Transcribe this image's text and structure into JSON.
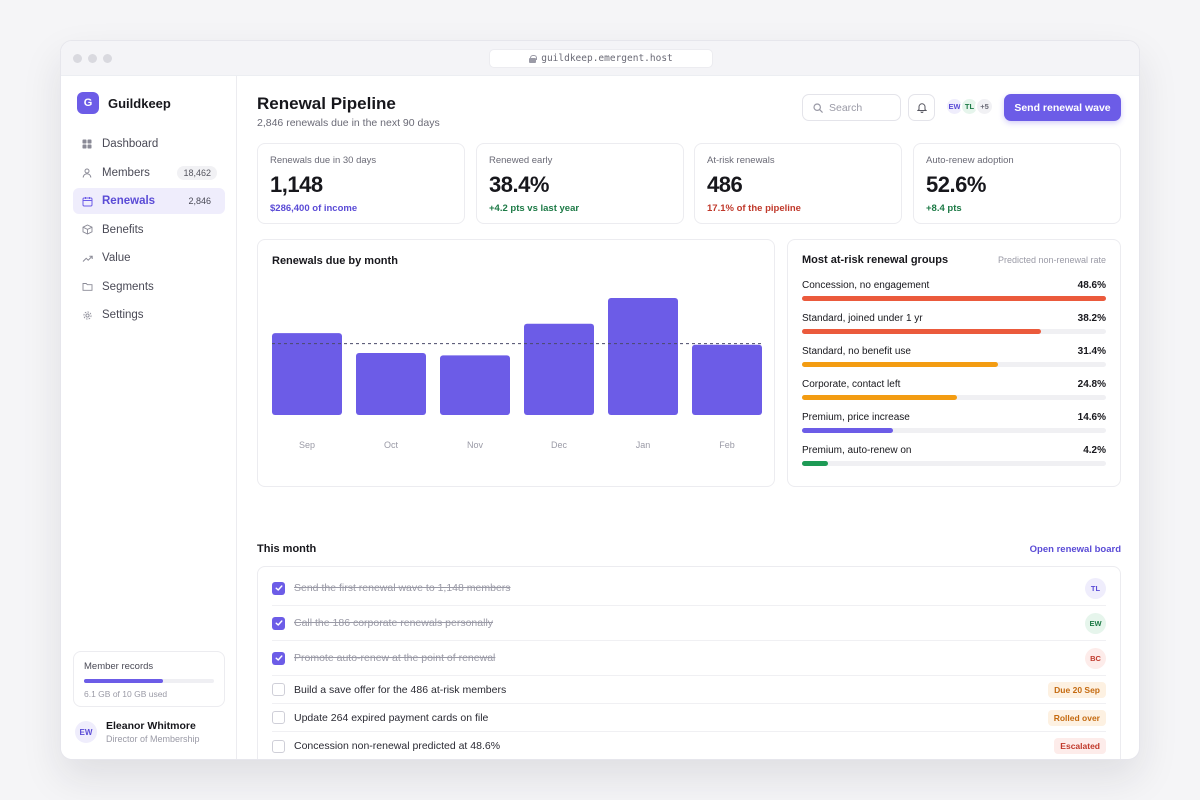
{
  "browser": {
    "url": "guildkeep.emergent.host"
  },
  "brand": {
    "logo_letter": "G",
    "name": "Guildkeep"
  },
  "sidebar": {
    "items": [
      {
        "label": "Dashboard",
        "badge": "",
        "icon": "grid-icon"
      },
      {
        "label": "Members",
        "badge": "18,462",
        "icon": "user-icon"
      },
      {
        "label": "Renewals",
        "badge": "2,846",
        "icon": "calendar-icon",
        "active": true
      },
      {
        "label": "Benefits",
        "badge": "",
        "icon": "box-icon"
      },
      {
        "label": "Value",
        "badge": "",
        "icon": "trend-icon"
      },
      {
        "label": "Segments",
        "badge": "",
        "icon": "folder-icon"
      },
      {
        "label": "Settings",
        "badge": "",
        "icon": "gear-icon"
      }
    ],
    "storage": {
      "title": "Member records",
      "used_text": "6.1 GB of 10 GB used",
      "fraction": 0.61
    },
    "user": {
      "initials": "EW",
      "name": "Eleanor Whitmore",
      "role": "Director of Membership"
    }
  },
  "header": {
    "title": "Renewal Pipeline",
    "subtitle": "2,846 renewals due in the next 90 days",
    "search_placeholder": "Search",
    "avatars": [
      "EW",
      "TL",
      "+5"
    ],
    "primary_button": "Send renewal wave"
  },
  "kpis": [
    {
      "label": "Renewals due in 30 days",
      "value": "1,148",
      "sub": "$286,400 of income",
      "color": "#5a4bd6"
    },
    {
      "label": "Renewed early",
      "value": "38.4%",
      "sub": "+4.2 pts vs last year",
      "color": "#1d7a46"
    },
    {
      "label": "At-risk renewals",
      "value": "486",
      "sub": "17.1% of the pipeline",
      "color": "#c0392b"
    },
    {
      "label": "Auto-renew adoption",
      "value": "52.6%",
      "sub": "+8.4 pts",
      "color": "#1d7a46"
    }
  ],
  "chart_data": {
    "type": "bar",
    "title": "Renewals due by month",
    "categories": [
      "Sep",
      "Oct",
      "Nov",
      "Dec",
      "Jan",
      "Feb"
    ],
    "values": [
      0.7,
      0.53,
      0.51,
      0.78,
      1.0,
      0.6
    ],
    "reference_line": 0.61,
    "bar_color": "#6c5ce7",
    "ylim": [
      0,
      1.0
    ],
    "grid": false
  },
  "risk": {
    "title": "Most at-risk renewal groups",
    "note": "Predicted non-renewal rate",
    "groups": [
      {
        "label": "Concession, no engagement",
        "pct": "48.6%",
        "value": 48.6,
        "color": "#eb5a3c"
      },
      {
        "label": "Standard, joined under 1 yr",
        "pct": "38.2%",
        "value": 38.2,
        "color": "#eb5a3c"
      },
      {
        "label": "Standard, no benefit use",
        "pct": "31.4%",
        "value": 31.4,
        "color": "#f39c12"
      },
      {
        "label": "Corporate, contact left",
        "pct": "24.8%",
        "value": 24.8,
        "color": "#f39c12"
      },
      {
        "label": "Premium, price increase",
        "pct": "14.6%",
        "value": 14.6,
        "color": "#6c5ce7"
      },
      {
        "label": "Premium, auto-renew on",
        "pct": "4.2%",
        "value": 4.2,
        "color": "#1d9a55"
      }
    ],
    "scale_max": 48.6
  },
  "tasks": {
    "title": "This month",
    "link": "Open renewal board",
    "items": [
      {
        "text": "Send the first renewal wave to 1,148 members",
        "done": true,
        "assignee": "TL",
        "av_bg": "#efedfc",
        "av_fg": "#5a4bd6"
      },
      {
        "text": "Call the 186 corporate renewals personally",
        "done": true,
        "assignee": "EW",
        "av_bg": "#e6f5ec",
        "av_fg": "#1d7a46"
      },
      {
        "text": "Promote auto-renew at the point of renewal",
        "done": true,
        "assignee": "BC",
        "av_bg": "#fdecea",
        "av_fg": "#c0392b"
      },
      {
        "text": "Build a save offer for the 486 at-risk members",
        "done": false,
        "tag": "Due 20 Sep",
        "tag_bg": "#fdf1e2",
        "tag_fg": "#c46a10"
      },
      {
        "text": "Update 264 expired payment cards on file",
        "done": false,
        "tag": "Rolled over",
        "tag_bg": "#fdf1e2",
        "tag_fg": "#c46a10"
      },
      {
        "text": "Concession non-renewal predicted at 48.6%",
        "done": false,
        "tag": "Escalated",
        "tag_bg": "#fdecea",
        "tag_fg": "#c0392b"
      }
    ]
  }
}
